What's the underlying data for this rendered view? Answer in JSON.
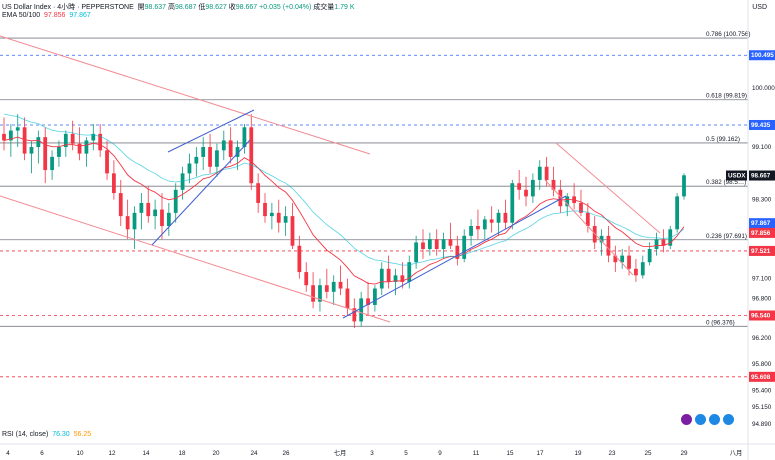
{
  "header": {
    "symbol": "US Dollar Index · 4小時 · PEPPERSTONE",
    "ohlc": {
      "o_label": "開",
      "o": "98.637",
      "h_label": "高",
      "h": "98.687",
      "l_label": "低",
      "l": "98.627",
      "c_label": "收",
      "c": "98.667",
      "chg": "+0.035 (+0.04%)",
      "vol_label": "成交量",
      "vol": "1.79 K"
    },
    "ema": {
      "label": "EMA 50/100",
      "v1": "97.856",
      "v2": "97.867"
    },
    "currency": "USD"
  },
  "rsi": {
    "label": "RSI (14, close)",
    "v1": "76.30",
    "v2": "56.25"
  },
  "colors": {
    "up": "#089981",
    "down": "#f23645",
    "ema_fast": "#f23645",
    "ema_slow": "#00bcd4",
    "trend": "#3f5fd1",
    "blue_tag": "#2962ff",
    "red_tag": "#f23645",
    "last_tag": "#131722"
  },
  "chart_data": {
    "type": "candlestick",
    "ylim": [
      94.8,
      101.0
    ],
    "y_ticks": [
      "100.000",
      "99.100",
      "98.300",
      "97.100",
      "96.800",
      "96.200",
      "95.800",
      "95.400",
      "95.150",
      "94.890"
    ],
    "x_ticks": [
      "4",
      "6",
      "10",
      "12",
      "14",
      "18",
      "20",
      "24",
      "26",
      "七月",
      "3",
      "5",
      "9",
      "11",
      "15",
      "17",
      "19",
      "23",
      "25",
      "29",
      "八月"
    ],
    "fib_levels": [
      {
        "ratio": "0.786 (100.756)",
        "price": 100.756
      },
      {
        "ratio": "0.618 (99.819)",
        "price": 99.819
      },
      {
        "ratio": "0.5 (99.162)",
        "price": 99.162
      },
      {
        "ratio": "0.382 (98.5…)",
        "price": 98.505
      },
      {
        "ratio": "0.236 (97.691)",
        "price": 97.691
      },
      {
        "ratio": "0 (96.376)",
        "price": 96.376
      }
    ],
    "price_tags": [
      {
        "label": "100.495",
        "price": 100.495,
        "color": "blue"
      },
      {
        "label": "99.435",
        "price": 99.435,
        "color": "blue"
      },
      {
        "label": "USDX",
        "price": 98.667,
        "color": "dark"
      },
      {
        "label": "98.667",
        "price": 98.667,
        "color": "dark"
      },
      {
        "label": "97.867",
        "price": 97.867,
        "color": "blue"
      },
      {
        "label": "97.856",
        "price": 97.856,
        "color": "red"
      },
      {
        "label": "97.521",
        "price": 97.521,
        "color": "red"
      },
      {
        "label": "96.540",
        "price": 96.54,
        "color": "red"
      },
      {
        "label": "95.608",
        "price": 95.608,
        "color": "red"
      }
    ],
    "candles": [
      [
        99.3,
        99.55,
        99.05,
        99.2
      ],
      [
        99.2,
        99.45,
        98.95,
        99.35
      ],
      [
        99.35,
        99.6,
        99.1,
        99.4
      ],
      [
        99.4,
        99.55,
        98.9,
        99.0
      ],
      [
        99.0,
        99.2,
        98.7,
        99.1
      ],
      [
        99.1,
        99.35,
        98.85,
        99.25
      ],
      [
        99.25,
        99.4,
        98.55,
        98.75
      ],
      [
        98.75,
        99.05,
        98.6,
        98.95
      ],
      [
        98.95,
        99.2,
        98.8,
        99.1
      ],
      [
        99.1,
        99.35,
        98.95,
        99.3
      ],
      [
        99.3,
        99.5,
        99.05,
        99.15
      ],
      [
        99.15,
        99.4,
        98.9,
        99.0
      ],
      [
        99.0,
        99.25,
        98.8,
        99.2
      ],
      [
        99.2,
        99.45,
        99.05,
        99.3
      ],
      [
        99.3,
        99.45,
        98.95,
        99.05
      ],
      [
        99.05,
        99.2,
        98.6,
        98.7
      ],
      [
        98.7,
        98.9,
        98.3,
        98.4
      ],
      [
        98.4,
        98.6,
        97.9,
        98.05
      ],
      [
        98.05,
        98.3,
        97.7,
        97.85
      ],
      [
        97.85,
        98.2,
        97.55,
        98.1
      ],
      [
        98.1,
        98.4,
        97.85,
        98.25
      ],
      [
        98.25,
        98.5,
        97.95,
        98.05
      ],
      [
        98.05,
        98.3,
        97.85,
        98.15
      ],
      [
        98.15,
        98.4,
        97.7,
        97.9
      ],
      [
        97.9,
        98.25,
        97.75,
        98.1
      ],
      [
        98.1,
        98.55,
        97.95,
        98.45
      ],
      [
        98.45,
        98.8,
        98.3,
        98.7
      ],
      [
        98.7,
        99.0,
        98.55,
        98.85
      ],
      [
        98.85,
        99.1,
        98.65,
        98.95
      ],
      [
        98.95,
        99.25,
        98.75,
        99.1
      ],
      [
        99.1,
        99.3,
        98.7,
        98.8
      ],
      [
        98.8,
        99.15,
        98.65,
        99.05
      ],
      [
        99.05,
        99.35,
        98.9,
        99.2
      ],
      [
        99.2,
        99.4,
        98.85,
        98.95
      ],
      [
        98.95,
        99.2,
        98.75,
        99.1
      ],
      [
        99.1,
        99.45,
        99.0,
        99.4
      ],
      [
        99.4,
        99.6,
        98.45,
        98.55
      ],
      [
        98.55,
        98.7,
        98.1,
        98.25
      ],
      [
        98.25,
        98.4,
        97.95,
        98.05
      ],
      [
        98.05,
        98.25,
        97.85,
        98.1
      ],
      [
        98.1,
        98.3,
        97.8,
        97.95
      ],
      [
        97.95,
        98.2,
        97.75,
        98.05
      ],
      [
        98.05,
        98.25,
        97.55,
        97.6
      ],
      [
        97.6,
        97.75,
        97.1,
        97.2
      ],
      [
        97.2,
        97.35,
        96.9,
        97.0
      ],
      [
        97.0,
        97.2,
        96.65,
        96.75
      ],
      [
        96.75,
        97.1,
        96.6,
        97.0
      ],
      [
        97.0,
        97.25,
        96.8,
        96.9
      ],
      [
        96.9,
        97.15,
        96.7,
        97.05
      ],
      [
        97.05,
        97.3,
        96.85,
        96.95
      ],
      [
        96.95,
        97.1,
        96.55,
        96.65
      ],
      [
        96.65,
        96.8,
        96.35,
        96.45
      ],
      [
        96.45,
        96.9,
        96.38,
        96.8
      ],
      [
        96.8,
        97.05,
        96.55,
        96.7
      ],
      [
        96.7,
        97.0,
        96.6,
        96.95
      ],
      [
        96.95,
        97.35,
        96.85,
        97.25
      ],
      [
        97.25,
        97.45,
        96.95,
        97.05
      ],
      [
        97.05,
        97.25,
        96.85,
        97.15
      ],
      [
        97.15,
        97.35,
        96.95,
        97.05
      ],
      [
        97.05,
        97.45,
        96.95,
        97.35
      ],
      [
        97.35,
        97.75,
        97.25,
        97.65
      ],
      [
        97.65,
        97.85,
        97.4,
        97.55
      ],
      [
        97.55,
        97.8,
        97.45,
        97.7
      ],
      [
        97.7,
        97.85,
        97.45,
        97.55
      ],
      [
        97.55,
        97.8,
        97.4,
        97.7
      ],
      [
        97.7,
        97.95,
        97.55,
        97.6
      ],
      [
        97.6,
        97.75,
        97.3,
        97.4
      ],
      [
        97.4,
        97.85,
        97.35,
        97.75
      ],
      [
        97.75,
        98.0,
        97.6,
        97.9
      ],
      [
        97.9,
        98.15,
        97.7,
        97.85
      ],
      [
        97.85,
        98.05,
        97.7,
        98.0
      ],
      [
        98.0,
        98.2,
        97.8,
        97.95
      ],
      [
        97.95,
        98.15,
        97.75,
        98.1
      ],
      [
        98.1,
        98.3,
        97.85,
        97.95
      ],
      [
        97.95,
        98.6,
        97.85,
        98.55
      ],
      [
        98.55,
        98.75,
        98.3,
        98.45
      ],
      [
        98.45,
        98.65,
        98.2,
        98.35
      ],
      [
        98.35,
        98.7,
        98.25,
        98.6
      ],
      [
        98.6,
        98.9,
        98.45,
        98.8
      ],
      [
        98.8,
        98.95,
        98.5,
        98.6
      ],
      [
        98.6,
        98.8,
        98.35,
        98.45
      ],
      [
        98.45,
        98.6,
        98.1,
        98.2
      ],
      [
        98.2,
        98.4,
        98.05,
        98.35
      ],
      [
        98.35,
        98.55,
        98.15,
        98.25
      ],
      [
        98.25,
        98.45,
        98.05,
        98.1
      ],
      [
        98.1,
        98.25,
        97.8,
        97.9
      ],
      [
        97.9,
        98.05,
        97.55,
        97.65
      ],
      [
        97.65,
        97.85,
        97.45,
        97.75
      ],
      [
        97.75,
        97.9,
        97.35,
        97.45
      ],
      [
        97.45,
        97.6,
        97.2,
        97.35
      ],
      [
        97.35,
        97.55,
        97.25,
        97.45
      ],
      [
        97.45,
        97.6,
        97.15,
        97.25
      ],
      [
        97.25,
        97.4,
        97.05,
        97.15
      ],
      [
        97.15,
        97.45,
        97.1,
        97.35
      ],
      [
        97.35,
        97.65,
        97.3,
        97.55
      ],
      [
        97.55,
        97.8,
        97.45,
        97.7
      ],
      [
        97.7,
        97.85,
        97.5,
        97.6
      ],
      [
        97.6,
        97.9,
        97.55,
        97.85
      ],
      [
        97.85,
        98.4,
        97.8,
        98.35
      ],
      [
        98.35,
        98.7,
        98.3,
        98.67
      ]
    ]
  }
}
